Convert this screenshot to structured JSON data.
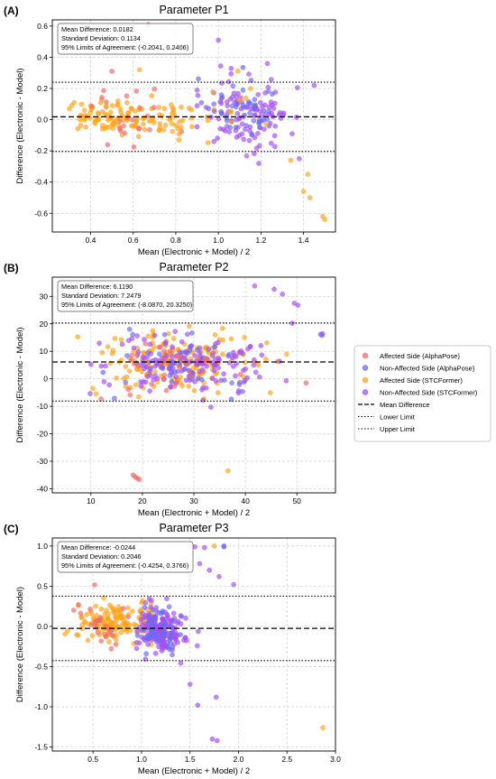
{
  "legend": {
    "placement": "right",
    "entries": [
      {
        "label": "Affected Side (AlphaPose)",
        "kind": "marker",
        "color": "#ef6c6c"
      },
      {
        "label": "Non-Affected Side (AlphaPose)",
        "kind": "marker",
        "color": "#6a6cf0"
      },
      {
        "label": "Affected Side (STCFormer)",
        "kind": "marker",
        "color": "#ffa31a"
      },
      {
        "label": "Non-Affected Side (STCFormer)",
        "kind": "marker",
        "color": "#a54ff0"
      },
      {
        "label": "Mean Difference",
        "kind": "dashed"
      },
      {
        "label": "Lower Limit",
        "kind": "dotted"
      },
      {
        "label": "Upper Limit",
        "kind": "dotted"
      }
    ]
  },
  "colors": {
    "affected_alphapose": "#ef6c6c",
    "nonaffected_alphapose": "#6a6cf0",
    "affected_stcformer": "#ffa31a",
    "nonaffected_stcformer": "#a54ff0",
    "grid": "#cfcfcf"
  },
  "chart_data": [
    {
      "panel_label": "(A)",
      "type": "scatter",
      "title": "Parameter P1",
      "xlabel": "Mean (Electronic + Model) / 2",
      "ylabel": "Difference (Electronic - Model)",
      "xlim": [
        0.22,
        1.55
      ],
      "ylim": [
        -0.72,
        0.64
      ],
      "xticks": [
        0.4,
        0.6,
        0.8,
        1.0,
        1.2,
        1.4
      ],
      "xtick_labels": [
        "0.4",
        "0.6",
        "0.8",
        "1.0",
        "1.2",
        "1.4"
      ],
      "yticks": [
        -0.6,
        -0.4,
        -0.2,
        0.0,
        0.2,
        0.4,
        0.6
      ],
      "ytick_labels": [
        "-0.6",
        "-0.4",
        "-0.2",
        "0.0",
        "0.2",
        "0.4",
        "0.6"
      ],
      "grid": true,
      "annotation": [
        "Mean Difference: 0.0182",
        "Standard Deviation: 0.1134",
        "95% Limits of Agreement: (-0.2041, 0.2406)"
      ],
      "mean_line": 0.0182,
      "lower_limit": -0.2041,
      "upper_limit": 0.2406,
      "clusters": [
        {
          "group": "affected_stcformer",
          "n": 95,
          "cx": 0.5,
          "sx": 0.12,
          "cy": 0.02,
          "sy": 0.055,
          "xmin": 0.3,
          "xmax": 0.85
        },
        {
          "group": "affected_stcformer",
          "n": 35,
          "cx": 0.78,
          "sx": 0.08,
          "cy": 0.0,
          "sy": 0.05,
          "xmin": 0.6,
          "xmax": 0.98
        },
        {
          "group": "affected_alphapose",
          "n": 22,
          "cx": 0.55,
          "sx": 0.12,
          "cy": 0.03,
          "sy": 0.09,
          "xmin": 0.38,
          "xmax": 0.85
        },
        {
          "group": "nonaffected_stcformer",
          "n": 110,
          "cx": 1.13,
          "sx": 0.11,
          "cy": 0.04,
          "sy": 0.11,
          "xmin": 0.9,
          "xmax": 1.45
        },
        {
          "group": "nonaffected_alphapose",
          "n": 45,
          "cx": 1.1,
          "sx": 0.09,
          "cy": 0.07,
          "sy": 0.1,
          "xmin": 0.9,
          "xmax": 1.32
        },
        {
          "group": "affected_stcformer",
          "n": 10,
          "cx": 1.08,
          "sx": 0.12,
          "cy": 0.05,
          "sy": 0.1,
          "xmin": 0.9,
          "xmax": 1.35
        }
      ],
      "points": [
        {
          "group": "affected_stcformer",
          "x": 1.42,
          "y": -0.35
        },
        {
          "group": "affected_stcformer",
          "x": 1.4,
          "y": -0.46
        },
        {
          "group": "affected_stcformer",
          "x": 1.43,
          "y": -0.5
        },
        {
          "group": "affected_stcformer",
          "x": 1.49,
          "y": -0.62
        },
        {
          "group": "affected_stcformer",
          "x": 1.5,
          "y": -0.64
        },
        {
          "group": "affected_stcformer",
          "x": 1.34,
          "y": -0.26
        },
        {
          "group": "affected_stcformer",
          "x": 0.63,
          "y": 0.32
        },
        {
          "group": "nonaffected_stcformer",
          "x": 1.0,
          "y": 0.51
        },
        {
          "group": "nonaffected_stcformer",
          "x": 1.38,
          "y": -0.25
        },
        {
          "group": "nonaffected_stcformer",
          "x": 1.23,
          "y": 0.36
        },
        {
          "group": "nonaffected_stcformer",
          "x": 1.19,
          "y": -0.28
        },
        {
          "group": "nonaffected_stcformer",
          "x": 1.45,
          "y": 0.22
        },
        {
          "group": "affected_alphapose",
          "x": 0.67,
          "y": 0.61
        },
        {
          "group": "affected_alphapose",
          "x": 0.48,
          "y": -0.16
        },
        {
          "group": "affected_alphapose",
          "x": 0.5,
          "y": 0.31
        }
      ]
    },
    {
      "panel_label": "(B)",
      "type": "scatter",
      "title": "Parameter P2",
      "xlabel": "Mean (Electronic + Model) / 2",
      "ylabel": "Difference (Electronic - Model)",
      "xlim": [
        2.5,
        57.5
      ],
      "ylim": [
        -41.5,
        37
      ],
      "xticks": [
        10,
        20,
        30,
        40,
        50
      ],
      "xtick_labels": [
        "10",
        "20",
        "30",
        "40",
        "50"
      ],
      "yticks": [
        -40,
        -30,
        -20,
        -10,
        0,
        10,
        20,
        30
      ],
      "ytick_labels": [
        "-40",
        "-30",
        "-20",
        "-10",
        "0",
        "10",
        "20",
        "30"
      ],
      "grid": true,
      "annotation": [
        "Mean Difference: 6.1190",
        "Standard Deviation: 7.2479",
        "95% Limits of Agreement: (-8.0870, 20.3250)"
      ],
      "mean_line": 6.119,
      "lower_limit": -8.087,
      "upper_limit": 20.325,
      "clusters": [
        {
          "group": "affected_stcformer",
          "n": 170,
          "cx": 27,
          "sx": 7.5,
          "cy": 6,
          "sy": 5.5,
          "xmin": 5,
          "xmax": 48
        },
        {
          "group": "nonaffected_stcformer",
          "n": 160,
          "cx": 28,
          "sx": 8,
          "cy": 5.5,
          "sy": 5.5,
          "xmin": 6,
          "xmax": 50
        },
        {
          "group": "nonaffected_alphapose",
          "n": 45,
          "cx": 28,
          "sx": 7.5,
          "cy": 5,
          "sy": 5,
          "xmin": 8,
          "xmax": 46
        },
        {
          "group": "affected_alphapose",
          "n": 35,
          "cx": 27,
          "sx": 7,
          "cy": 4.5,
          "sy": 5,
          "xmin": 8,
          "xmax": 45
        }
      ],
      "points": [
        {
          "group": "affected_alphapose",
          "x": 18.2,
          "y": -35
        },
        {
          "group": "affected_alphapose",
          "x": 18.6,
          "y": -35.7
        },
        {
          "group": "affected_alphapose",
          "x": 19.0,
          "y": -36.2
        },
        {
          "group": "affected_alphapose",
          "x": 19.4,
          "y": -36.6
        },
        {
          "group": "affected_alphapose",
          "x": 51.8,
          "y": -1.5
        },
        {
          "group": "affected_stcformer",
          "x": 36.6,
          "y": -33.5
        },
        {
          "group": "nonaffected_stcformer",
          "x": 41.8,
          "y": 33.8
        },
        {
          "group": "nonaffected_stcformer",
          "x": 45.6,
          "y": 32.6
        },
        {
          "group": "nonaffected_stcformer",
          "x": 47.2,
          "y": 30.8
        },
        {
          "group": "nonaffected_stcformer",
          "x": 49.5,
          "y": 27.5
        },
        {
          "group": "nonaffected_stcformer",
          "x": 50.2,
          "y": 26.8
        },
        {
          "group": "nonaffected_stcformer",
          "x": 49.1,
          "y": 20.2
        },
        {
          "group": "nonaffected_alphapose",
          "x": 54.6,
          "y": 16.2
        },
        {
          "group": "nonaffected_alphapose",
          "x": 54.9,
          "y": 15.8
        },
        {
          "group": "nonaffected_stcformer",
          "x": 55.0,
          "y": 16.4
        }
      ]
    },
    {
      "panel_label": "(C)",
      "type": "scatter",
      "title": "Parameter P3",
      "xlabel": "Mean (Electronic + Model) / 2",
      "ylabel": "Difference (Electronic - Model)",
      "xlim": [
        0.08,
        3.0
      ],
      "ylim": [
        -1.55,
        1.1
      ],
      "xticks": [
        0.5,
        1.0,
        1.5,
        2.0,
        2.5,
        3.0
      ],
      "xtick_labels": [
        "0.5",
        "1.0",
        "1.5",
        "2.0",
        "2.5",
        "3.0"
      ],
      "yticks": [
        -1.5,
        -1.0,
        -0.5,
        0.0,
        0.5,
        1.0
      ],
      "ytick_labels": [
        "-1.5",
        "-1.0",
        "-0.5",
        "0.0",
        "0.5",
        "1.0"
      ],
      "grid": true,
      "annotation": [
        "Mean Difference: -0.0244",
        "Standard Deviation: 0.2046",
        "95% Limits of Agreement: (-0.4254, 0.3766)"
      ],
      "mean_line": -0.0244,
      "lower_limit": -0.4254,
      "upper_limit": 0.3766,
      "clusters": [
        {
          "group": "affected_stcformer",
          "n": 150,
          "cx": 0.7,
          "sx": 0.2,
          "cy": 0.05,
          "sy": 0.12,
          "xmin": 0.2,
          "xmax": 1.1
        },
        {
          "group": "affected_alphapose",
          "n": 25,
          "cx": 0.55,
          "sx": 0.15,
          "cy": 0.05,
          "sy": 0.15,
          "xmin": 0.3,
          "xmax": 0.95
        },
        {
          "group": "nonaffected_stcformer",
          "n": 170,
          "cx": 1.2,
          "sx": 0.12,
          "cy": -0.05,
          "sy": 0.14,
          "xmin": 0.95,
          "xmax": 1.6
        },
        {
          "group": "nonaffected_alphapose",
          "n": 50,
          "cx": 1.18,
          "sx": 0.11,
          "cy": -0.05,
          "sy": 0.14,
          "xmin": 0.95,
          "xmax": 1.55
        }
      ],
      "points": [
        {
          "group": "nonaffected_stcformer",
          "x": 1.55,
          "y": 0.99
        },
        {
          "group": "nonaffected_stcformer",
          "x": 1.65,
          "y": 0.98
        },
        {
          "group": "nonaffected_stcformer",
          "x": 1.85,
          "y": 0.99
        },
        {
          "group": "nonaffected_stcformer",
          "x": 1.7,
          "y": 0.7
        },
        {
          "group": "nonaffected_stcformer",
          "x": 1.8,
          "y": 0.62
        },
        {
          "group": "nonaffected_stcformer",
          "x": 1.95,
          "y": 0.52
        },
        {
          "group": "nonaffected_stcformer",
          "x": 1.6,
          "y": 0.78
        },
        {
          "group": "nonaffected_stcformer",
          "x": 1.58,
          "y": -0.98
        },
        {
          "group": "nonaffected_stcformer",
          "x": 1.77,
          "y": -0.88
        },
        {
          "group": "nonaffected_stcformer",
          "x": 1.73,
          "y": -1.4
        },
        {
          "group": "nonaffected_stcformer",
          "x": 1.78,
          "y": -1.42
        },
        {
          "group": "nonaffected_stcformer",
          "x": 1.5,
          "y": -0.72
        },
        {
          "group": "affected_stcformer",
          "x": 1.75,
          "y": 1.0
        },
        {
          "group": "affected_stcformer",
          "x": 2.87,
          "y": -1.26
        },
        {
          "group": "nonaffected_alphapose",
          "x": 1.85,
          "y": 1.0
        }
      ]
    }
  ]
}
